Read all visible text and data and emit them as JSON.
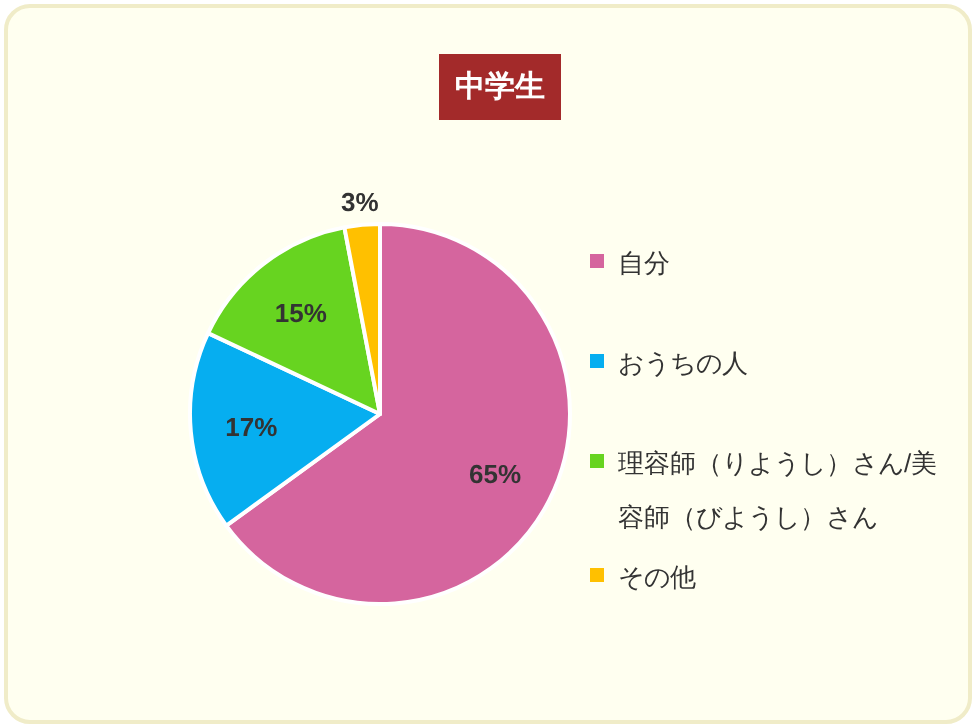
{
  "chart_data": {
    "type": "pie",
    "title": "中学生",
    "categories": [
      "自分",
      "おうちの人",
      "理容師（りようし）さん/美容師（びようし）さん",
      "その他"
    ],
    "values": [
      65,
      17,
      15,
      3
    ],
    "value_labels": [
      "65%",
      "17%",
      "15%",
      "3%"
    ],
    "colors": [
      "#d5659e",
      "#06aef0",
      "#67d420",
      "#ffc000"
    ],
    "legend": "right"
  }
}
